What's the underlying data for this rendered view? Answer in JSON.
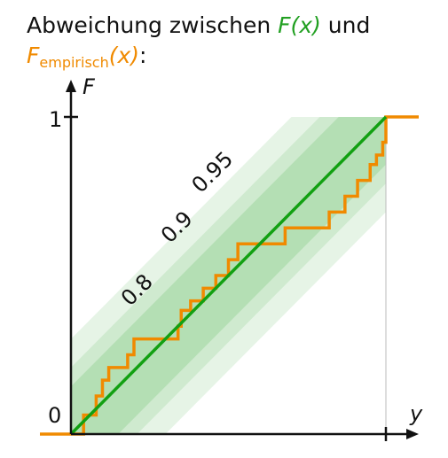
{
  "heading": {
    "line1_prefix": "Abweichung zwischen ",
    "line1_F": "F",
    "line1_x": "(x)",
    "line1_suffix": " und",
    "line2_F": "F",
    "line2_sub": "empirisch",
    "line2_x": "(x)",
    "line2_colon": ":"
  },
  "axes": {
    "y_label": "F",
    "x_label": "y",
    "tick_one": "1",
    "tick_zero": "0"
  },
  "bands": [
    {
      "label": "0.95",
      "color": "#e6f4e6"
    },
    {
      "label": "0.9",
      "color": "#cfeacf"
    },
    {
      "label": "0.8",
      "color": "#b4dfb4"
    }
  ],
  "colors": {
    "theoretical": "#12a012",
    "empirical": "#f08a00",
    "axis": "#111111"
  },
  "empirical_steps": {
    "x": [
      0.0,
      0.04,
      0.08,
      0.1,
      0.12,
      0.18,
      0.2,
      0.34,
      0.35,
      0.38,
      0.42,
      0.46,
      0.5,
      0.53,
      0.59,
      0.68,
      0.82,
      0.87,
      0.91,
      0.95,
      0.97,
      0.99,
      1.0
    ],
    "y": [
      0.0,
      0.06,
      0.12,
      0.17,
      0.21,
      0.25,
      0.3,
      0.34,
      0.39,
      0.42,
      0.46,
      0.5,
      0.55,
      0.6,
      0.6,
      0.65,
      0.7,
      0.75,
      0.8,
      0.85,
      0.88,
      0.92,
      0.96
    ]
  }
}
